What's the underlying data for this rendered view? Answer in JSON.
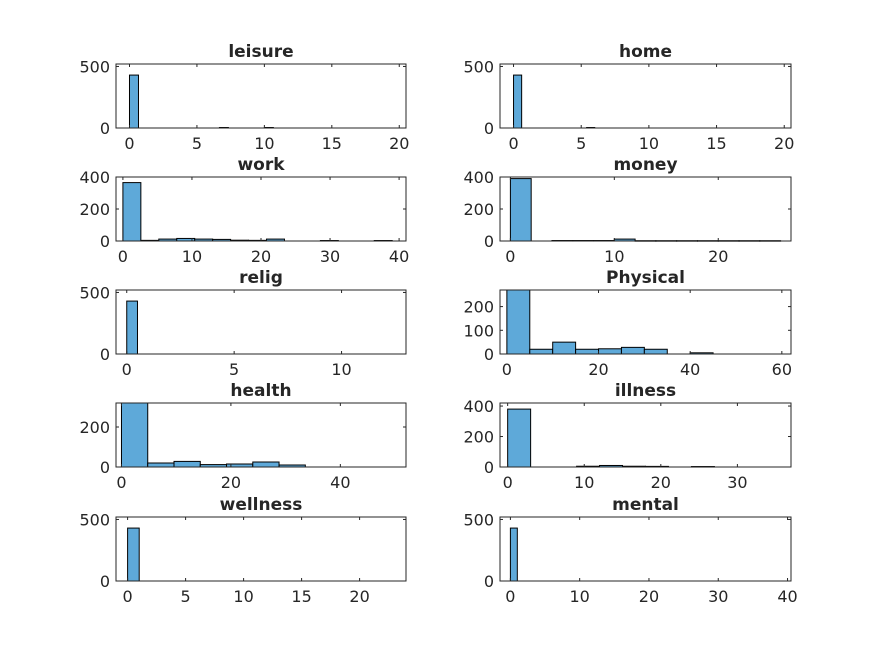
{
  "chart_data": [
    {
      "type": "bar",
      "title": "leisure",
      "bins": [
        [
          0,
          0.667
        ],
        [
          6.667,
          7.333
        ],
        [
          10,
          10.667
        ]
      ],
      "values": [
        430,
        4,
        4
      ],
      "xlim": [
        -1,
        20.5
      ],
      "ylim": [
        0,
        520
      ],
      "xticks": [
        0,
        5,
        10,
        15,
        20
      ],
      "xticklabels": [
        "0",
        "5",
        "10",
        "15",
        "20"
      ],
      "yticks": [
        0,
        500
      ],
      "yticklabels": [
        "0",
        "500"
      ]
    },
    {
      "type": "bar",
      "title": "home",
      "bins": [
        [
          0,
          0.6
        ],
        [
          5.4,
          6.0
        ]
      ],
      "values": [
        430,
        4
      ],
      "xlim": [
        -1,
        20.5
      ],
      "ylim": [
        0,
        520
      ],
      "xticks": [
        0,
        5,
        10,
        15,
        20
      ],
      "xticklabels": [
        "0",
        "5",
        "10",
        "15",
        "20"
      ],
      "yticks": [
        0,
        500
      ],
      "yticklabels": [
        "0",
        "500"
      ]
    },
    {
      "type": "bar",
      "title": "work",
      "bins": [
        [
          0,
          2.6
        ],
        [
          2.6,
          5.2
        ],
        [
          5.2,
          7.8
        ],
        [
          7.8,
          10.4
        ],
        [
          10.4,
          13
        ],
        [
          13,
          15.6
        ],
        [
          15.6,
          18.2
        ],
        [
          18.2,
          20.8
        ],
        [
          20.8,
          23.4
        ],
        [
          28.6,
          31.2
        ],
        [
          36.4,
          39
        ]
      ],
      "values": [
        365,
        4,
        12,
        16,
        12,
        10,
        5,
        4,
        12,
        3,
        3
      ],
      "xlim": [
        -1,
        41
      ],
      "ylim": [
        0,
        400
      ],
      "xticks": [
        0,
        10,
        20,
        30,
        40
      ],
      "xticklabels": [
        "0",
        "10",
        "20",
        "30",
        "40"
      ],
      "yticks": [
        0,
        200,
        400
      ],
      "yticklabels": [
        "0",
        "200",
        "400"
      ]
    },
    {
      "type": "bar",
      "title": "money",
      "bins": [
        [
          0,
          2
        ],
        [
          4,
          6
        ],
        [
          6,
          8
        ],
        [
          8,
          10
        ],
        [
          10,
          12
        ],
        [
          12,
          14
        ],
        [
          14,
          16
        ],
        [
          16,
          18
        ],
        [
          18,
          20
        ],
        [
          20,
          22
        ],
        [
          22,
          24
        ],
        [
          24,
          26
        ]
      ],
      "values": [
        390,
        3,
        3,
        3,
        12,
        2,
        2,
        2,
        2,
        2,
        2,
        2
      ],
      "xlim": [
        -1,
        27
      ],
      "ylim": [
        0,
        400
      ],
      "xticks": [
        0,
        10,
        20
      ],
      "xticklabels": [
        "0",
        "10",
        "20"
      ],
      "yticks": [
        0,
        200,
        400
      ],
      "yticklabels": [
        "0",
        "200",
        "400"
      ]
    },
    {
      "type": "bar",
      "title": "relig",
      "bins": [
        [
          0,
          0.5
        ]
      ],
      "values": [
        430
      ],
      "xlim": [
        -0.5,
        13
      ],
      "ylim": [
        0,
        520
      ],
      "xticks": [
        0,
        5,
        10
      ],
      "xticklabels": [
        "0",
        "5",
        "10"
      ],
      "yticks": [
        0,
        500
      ],
      "yticklabels": [
        "0",
        "500"
      ]
    },
    {
      "type": "bar",
      "title": "Physical",
      "bins": [
        [
          0,
          5
        ],
        [
          5,
          10
        ],
        [
          10,
          15
        ],
        [
          15,
          20
        ],
        [
          20,
          25
        ],
        [
          25,
          30
        ],
        [
          30,
          35
        ],
        [
          40,
          45
        ]
      ],
      "values": [
        270,
        20,
        50,
        20,
        22,
        28,
        20,
        5
      ],
      "xlim": [
        -1.5,
        62
      ],
      "ylim": [
        0,
        270
      ],
      "xticks": [
        0,
        20,
        40,
        60
      ],
      "xticklabels": [
        "0",
        "20",
        "40",
        "60"
      ],
      "yticks": [
        0,
        100,
        200
      ],
      "yticklabels": [
        "0",
        "100",
        "200"
      ]
    },
    {
      "type": "bar",
      "title": "health",
      "bins": [
        [
          0,
          4.8
        ],
        [
          4.8,
          9.6
        ],
        [
          9.6,
          14.4
        ],
        [
          14.4,
          19.2
        ],
        [
          19.2,
          24
        ],
        [
          24,
          28.8
        ],
        [
          28.8,
          33.6
        ]
      ],
      "values": [
        320,
        20,
        28,
        12,
        15,
        25,
        10
      ],
      "xlim": [
        -1,
        52
      ],
      "ylim": [
        0,
        320
      ],
      "xticks": [
        0,
        20,
        40
      ],
      "xticklabels": [
        "0",
        "20",
        "40"
      ],
      "yticks": [
        0,
        200
      ],
      "yticklabels": [
        "0",
        "200"
      ]
    },
    {
      "type": "bar",
      "title": "illness",
      "bins": [
        [
          0,
          3
        ],
        [
          9,
          12
        ],
        [
          12,
          15
        ],
        [
          15,
          18
        ],
        [
          18,
          21
        ],
        [
          24,
          27
        ]
      ],
      "values": [
        380,
        5,
        10,
        5,
        4,
        3
      ],
      "xlim": [
        -1,
        37
      ],
      "ylim": [
        0,
        420
      ],
      "xticks": [
        0,
        10,
        20,
        30
      ],
      "xticklabels": [
        "0",
        "10",
        "20",
        "30"
      ],
      "yticks": [
        0,
        200,
        400
      ],
      "yticklabels": [
        "0",
        "200",
        "400"
      ]
    },
    {
      "type": "bar",
      "title": "wellness",
      "bins": [
        [
          0,
          1
        ]
      ],
      "values": [
        430
      ],
      "xlim": [
        -1,
        24
      ],
      "ylim": [
        0,
        520
      ],
      "xticks": [
        0,
        5,
        10,
        15,
        20
      ],
      "xticklabels": [
        "0",
        "5",
        "10",
        "15",
        "20"
      ],
      "yticks": [
        0,
        500
      ],
      "yticklabels": [
        "0",
        "500"
      ]
    },
    {
      "type": "bar",
      "title": "mental",
      "bins": [
        [
          0,
          1
        ]
      ],
      "values": [
        430
      ],
      "xlim": [
        -1.5,
        40.5
      ],
      "ylim": [
        0,
        520
      ],
      "xticks": [
        0,
        10,
        20,
        30,
        40
      ],
      "xticklabels": [
        "0",
        "10",
        "20",
        "30",
        "40"
      ],
      "yticks": [
        0,
        500
      ],
      "yticklabels": [
        "0",
        "500"
      ]
    }
  ],
  "colors": {
    "bar_fill": "#5ea9d9",
    "bar_edge": "#000000",
    "axis": "#262626"
  }
}
